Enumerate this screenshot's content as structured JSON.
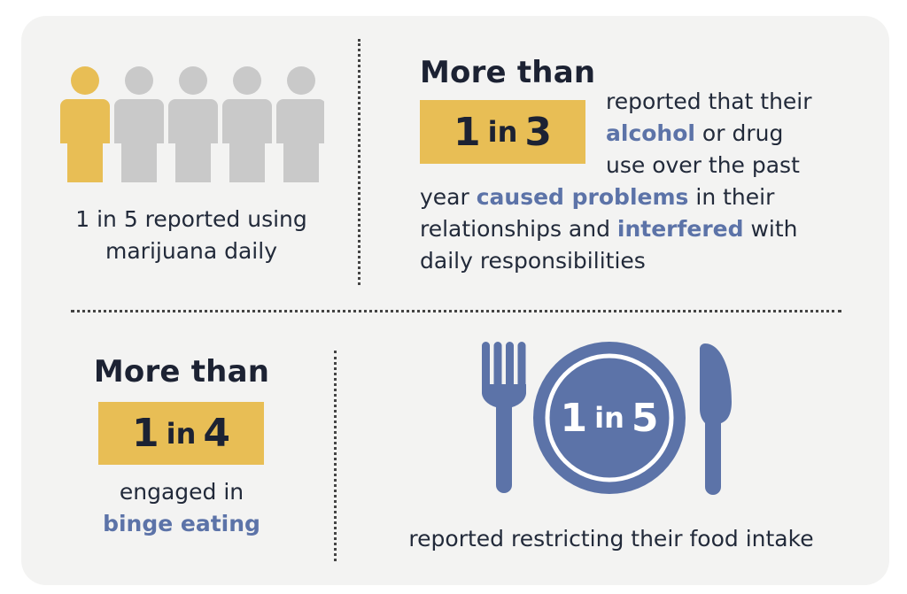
{
  "colors": {
    "accent_yellow": "#e8be55",
    "accent_blue": "#5c73a8",
    "person_gray": "#c9c9c9",
    "card_bg": "#f3f3f2",
    "text_dark": "#1c2233"
  },
  "people_graphic": {
    "highlighted_count": 1,
    "total_count": 5,
    "icon": "person-icon"
  },
  "marijuana": {
    "line1": "1 in 5 reported using",
    "line2": "marijuana daily"
  },
  "alcohol": {
    "heading": "More than",
    "badge_num": "1",
    "badge_in": "in",
    "badge_den": "3",
    "t_reported": "reported that their",
    "t_alcohol": "alcohol",
    "t_ordrug": " or drug",
    "t_use": "use over the past",
    "t_year": "year ",
    "t_caused": "caused problems",
    "t_intheir": " in their",
    "t_rel": "relationships and ",
    "t_interfered": "interfered",
    "t_with": " with",
    "t_daily": "daily responsibilities"
  },
  "binge": {
    "heading": "More than",
    "badge_num": "1",
    "badge_in": "in",
    "badge_den": "4",
    "line1": "engaged in",
    "line2": "binge eating"
  },
  "food": {
    "plate_num": "1",
    "plate_in": "in",
    "plate_den": "5",
    "caption": "reported restricting their food intake"
  }
}
